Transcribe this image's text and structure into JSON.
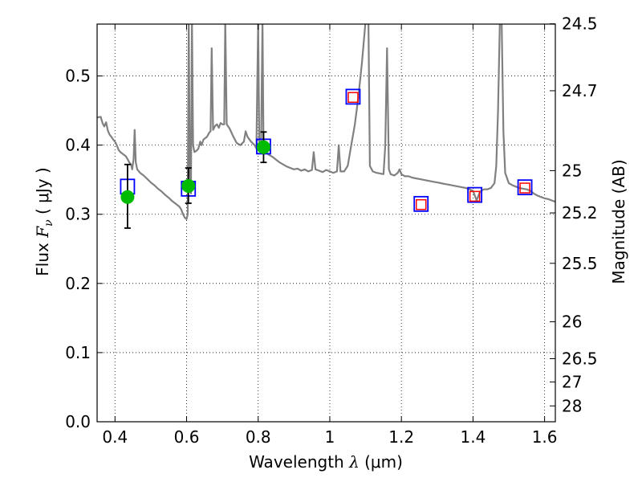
{
  "chart_data": {
    "type": "scatter",
    "xlabel": {
      "main": "Wavelength",
      "symbol": "λ",
      "unit": "(μm)"
    },
    "ylabel": {
      "main": "Flux",
      "symbol": "F",
      "subscript": "ν",
      "unit": "( μJy )"
    },
    "ylabel_right": "Magnitude (AB)",
    "xlim": [
      0.35,
      1.63
    ],
    "ylim": [
      0.0,
      0.575
    ],
    "grid": true,
    "x_ticks": [
      {
        "value": 0.4,
        "label": "0.4"
      },
      {
        "value": 0.6,
        "label": "0.6"
      },
      {
        "value": 0.8,
        "label": "0.8"
      },
      {
        "value": 1.0,
        "label": "1"
      },
      {
        "value": 1.2,
        "label": "1.2"
      },
      {
        "value": 1.4,
        "label": "1.4"
      },
      {
        "value": 1.6,
        "label": "1.6"
      }
    ],
    "y_ticks": [
      {
        "value": 0.0,
        "label": "0.0"
      },
      {
        "value": 0.1,
        "label": "0.1"
      },
      {
        "value": 0.2,
        "label": "0.2"
      },
      {
        "value": 0.3,
        "label": "0.3"
      },
      {
        "value": 0.4,
        "label": "0.4"
      },
      {
        "value": 0.5,
        "label": "0.5"
      }
    ],
    "right_ticks": [
      {
        "value": 24.5,
        "label": "24.5"
      },
      {
        "value": 24.7,
        "label": "24.7"
      },
      {
        "value": 25.0,
        "label": "25"
      },
      {
        "value": 25.2,
        "label": "25.2"
      },
      {
        "value": 25.5,
        "label": "25.5"
      },
      {
        "value": 26.0,
        "label": "26"
      },
      {
        "value": 26.5,
        "label": "26.5"
      },
      {
        "value": 27.0,
        "label": "27"
      },
      {
        "value": 28.0,
        "label": "28"
      }
    ],
    "series": [
      {
        "kind": "line",
        "color": "#808080",
        "points": [
          [
            0.35,
            0.44
          ],
          [
            0.36,
            0.441
          ],
          [
            0.365,
            0.432
          ],
          [
            0.37,
            0.427
          ],
          [
            0.375,
            0.433
          ],
          [
            0.38,
            0.421
          ],
          [
            0.385,
            0.415
          ],
          [
            0.39,
            0.412
          ],
          [
            0.395,
            0.408
          ],
          [
            0.4,
            0.405
          ],
          [
            0.405,
            0.4
          ],
          [
            0.41,
            0.393
          ],
          [
            0.415,
            0.39
          ],
          [
            0.42,
            0.388
          ],
          [
            0.425,
            0.386
          ],
          [
            0.43,
            0.384
          ],
          [
            0.435,
            0.38
          ],
          [
            0.44,
            0.375
          ],
          [
            0.445,
            0.372
          ],
          [
            0.448,
            0.365
          ],
          [
            0.452,
            0.38
          ],
          [
            0.455,
            0.422
          ],
          [
            0.458,
            0.375
          ],
          [
            0.462,
            0.365
          ],
          [
            0.47,
            0.36
          ],
          [
            0.48,
            0.356
          ],
          [
            0.49,
            0.351
          ],
          [
            0.5,
            0.346
          ],
          [
            0.51,
            0.342
          ],
          [
            0.52,
            0.337
          ],
          [
            0.53,
            0.333
          ],
          [
            0.54,
            0.328
          ],
          [
            0.55,
            0.324
          ],
          [
            0.56,
            0.319
          ],
          [
            0.57,
            0.315
          ],
          [
            0.58,
            0.311
          ],
          [
            0.585,
            0.307
          ],
          [
            0.59,
            0.3
          ],
          [
            0.595,
            0.295
          ],
          [
            0.6,
            0.293
          ],
          [
            0.603,
            0.3
          ],
          [
            0.606,
            0.58
          ],
          [
            0.609,
            0.36
          ],
          [
            0.612,
            0.33
          ],
          [
            0.615,
            0.58
          ],
          [
            0.618,
            0.4
          ],
          [
            0.622,
            0.39
          ],
          [
            0.628,
            0.392
          ],
          [
            0.633,
            0.395
          ],
          [
            0.638,
            0.405
          ],
          [
            0.642,
            0.4
          ],
          [
            0.647,
            0.408
          ],
          [
            0.652,
            0.41
          ],
          [
            0.657,
            0.412
          ],
          [
            0.663,
            0.418
          ],
          [
            0.667,
            0.42
          ],
          [
            0.67,
            0.54
          ],
          [
            0.674,
            0.422
          ],
          [
            0.68,
            0.428
          ],
          [
            0.685,
            0.43
          ],
          [
            0.69,
            0.425
          ],
          [
            0.695,
            0.432
          ],
          [
            0.7,
            0.43
          ],
          [
            0.705,
            0.43
          ],
          [
            0.708,
            0.58
          ],
          [
            0.712,
            0.43
          ],
          [
            0.72,
            0.424
          ],
          [
            0.73,
            0.413
          ],
          [
            0.74,
            0.403
          ],
          [
            0.75,
            0.4
          ],
          [
            0.76,
            0.405
          ],
          [
            0.765,
            0.42
          ],
          [
            0.77,
            0.412
          ],
          [
            0.78,
            0.405
          ],
          [
            0.79,
            0.4
          ],
          [
            0.795,
            0.395
          ],
          [
            0.8,
            0.58
          ],
          [
            0.803,
            0.4
          ],
          [
            0.808,
            0.395
          ],
          [
            0.812,
            0.58
          ],
          [
            0.815,
            0.395
          ],
          [
            0.82,
            0.39
          ],
          [
            0.83,
            0.386
          ],
          [
            0.84,
            0.383
          ],
          [
            0.85,
            0.379
          ],
          [
            0.86,
            0.375
          ],
          [
            0.87,
            0.372
          ],
          [
            0.88,
            0.369
          ],
          [
            0.89,
            0.367
          ],
          [
            0.9,
            0.365
          ],
          [
            0.91,
            0.366
          ],
          [
            0.92,
            0.363
          ],
          [
            0.93,
            0.365
          ],
          [
            0.94,
            0.362
          ],
          [
            0.95,
            0.364
          ],
          [
            0.955,
            0.39
          ],
          [
            0.96,
            0.365
          ],
          [
            0.97,
            0.363
          ],
          [
            0.98,
            0.361
          ],
          [
            0.99,
            0.364
          ],
          [
            1.0,
            0.362
          ],
          [
            1.01,
            0.36
          ],
          [
            1.02,
            0.362
          ],
          [
            1.025,
            0.4
          ],
          [
            1.03,
            0.362
          ],
          [
            1.04,
            0.362
          ],
          [
            1.05,
            0.37
          ],
          [
            1.06,
            0.4
          ],
          [
            1.07,
            0.43
          ],
          [
            1.08,
            0.47
          ],
          [
            1.09,
            0.52
          ],
          [
            1.1,
            0.58
          ],
          [
            1.108,
            0.58
          ],
          [
            1.112,
            0.37
          ],
          [
            1.12,
            0.362
          ],
          [
            1.13,
            0.36
          ],
          [
            1.14,
            0.359
          ],
          [
            1.15,
            0.358
          ],
          [
            1.155,
            0.4
          ],
          [
            1.16,
            0.54
          ],
          [
            1.165,
            0.365
          ],
          [
            1.17,
            0.358
          ],
          [
            1.18,
            0.356
          ],
          [
            1.19,
            0.36
          ],
          [
            1.195,
            0.365
          ],
          [
            1.2,
            0.358
          ],
          [
            1.21,
            0.355
          ],
          [
            1.22,
            0.355
          ],
          [
            1.23,
            0.353
          ],
          [
            1.24,
            0.352
          ],
          [
            1.25,
            0.351
          ],
          [
            1.26,
            0.35
          ],
          [
            1.27,
            0.349
          ],
          [
            1.28,
            0.348
          ],
          [
            1.29,
            0.347
          ],
          [
            1.3,
            0.346
          ],
          [
            1.31,
            0.345
          ],
          [
            1.32,
            0.344
          ],
          [
            1.33,
            0.343
          ],
          [
            1.34,
            0.342
          ],
          [
            1.35,
            0.341
          ],
          [
            1.36,
            0.34
          ],
          [
            1.37,
            0.339
          ],
          [
            1.38,
            0.338
          ],
          [
            1.39,
            0.336
          ],
          [
            1.4,
            0.334
          ],
          [
            1.41,
            0.32
          ],
          [
            1.42,
            0.333
          ],
          [
            1.43,
            0.336
          ],
          [
            1.44,
            0.336
          ],
          [
            1.45,
            0.338
          ],
          [
            1.46,
            0.345
          ],
          [
            1.465,
            0.37
          ],
          [
            1.47,
            0.45
          ],
          [
            1.475,
            0.58
          ],
          [
            1.48,
            0.58
          ],
          [
            1.485,
            0.42
          ],
          [
            1.49,
            0.36
          ],
          [
            1.5,
            0.345
          ],
          [
            1.51,
            0.342
          ],
          [
            1.52,
            0.34
          ],
          [
            1.53,
            0.338
          ],
          [
            1.54,
            0.337
          ],
          [
            1.55,
            0.336
          ],
          [
            1.56,
            0.334
          ],
          [
            1.57,
            0.33
          ],
          [
            1.58,
            0.327
          ],
          [
            1.59,
            0.325
          ],
          [
            1.6,
            0.323
          ],
          [
            1.61,
            0.322
          ],
          [
            1.62,
            0.32
          ],
          [
            1.63,
            0.318
          ]
        ]
      },
      {
        "kind": "model-box-blue",
        "color": "#0000ff",
        "points": [
          [
            0.435,
            0.34
          ],
          [
            0.605,
            0.337
          ],
          [
            0.815,
            0.398
          ],
          [
            1.065,
            0.47
          ],
          [
            1.255,
            0.315
          ],
          [
            1.405,
            0.328
          ],
          [
            1.545,
            0.339
          ]
        ]
      },
      {
        "kind": "model-box-red",
        "color": "#ff0000",
        "points": [
          [
            1.065,
            0.469
          ],
          [
            1.255,
            0.314
          ],
          [
            1.405,
            0.326
          ],
          [
            1.545,
            0.338
          ]
        ]
      },
      {
        "kind": "observed",
        "color": "#00bb00",
        "points": [
          [
            0.435,
            0.325
          ],
          [
            0.605,
            0.341
          ],
          [
            0.815,
            0.397
          ]
        ],
        "error_low": [
          0.28,
          0.316,
          0.375
        ],
        "error_high": [
          0.372,
          0.367,
          0.419
        ]
      }
    ]
  }
}
